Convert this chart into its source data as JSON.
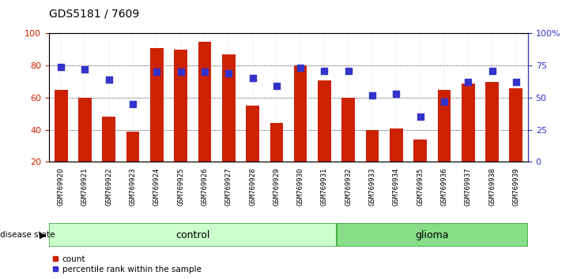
{
  "title": "GDS5181 / 7609",
  "samples": [
    "GSM769920",
    "GSM769921",
    "GSM769922",
    "GSM769923",
    "GSM769924",
    "GSM769925",
    "GSM769926",
    "GSM769927",
    "GSM769928",
    "GSM769929",
    "GSM769930",
    "GSM769931",
    "GSM769932",
    "GSM769933",
    "GSM769934",
    "GSM769935",
    "GSM769936",
    "GSM769937",
    "GSM769938",
    "GSM769939"
  ],
  "bar_values": [
    65,
    60,
    48,
    39,
    91,
    90,
    95,
    87,
    55,
    44,
    80,
    71,
    60,
    40,
    41,
    34,
    65,
    69,
    70,
    66
  ],
  "dot_pct": [
    74,
    72,
    64,
    45,
    70,
    70,
    70,
    69,
    65,
    59,
    73,
    71,
    71,
    52,
    53,
    35,
    47,
    62,
    71,
    62
  ],
  "bar_color": "#cc2200",
  "dot_color": "#3333cc",
  "bar_bottom": 20,
  "ymin": 20,
  "ymax": 100,
  "yticks_left": [
    20,
    40,
    60,
    80,
    100
  ],
  "yticks_right": [
    0,
    25,
    50,
    75,
    100
  ],
  "ytick_right_labels": [
    "0",
    "25",
    "50",
    "75",
    "100%"
  ],
  "grid_lines": [
    40,
    60,
    80
  ],
  "control_count": 12,
  "control_label": "control",
  "glioma_label": "glioma",
  "disease_state_label": "disease state",
  "legend_count": "count",
  "legend_pct": "percentile rank within the sample",
  "control_color_light": "#ccffcc",
  "control_color_border": "#44aa44",
  "glioma_color_light": "#88dd88",
  "glioma_color_border": "#44aa44",
  "bar_width": 0.55,
  "dot_size": 35,
  "xlabel_fontsize": 6.5,
  "title_fontsize": 10,
  "tick_label_color_left": "#cc2200",
  "tick_label_color_right": "#3333cc",
  "xtick_bg_color": "#cccccc"
}
